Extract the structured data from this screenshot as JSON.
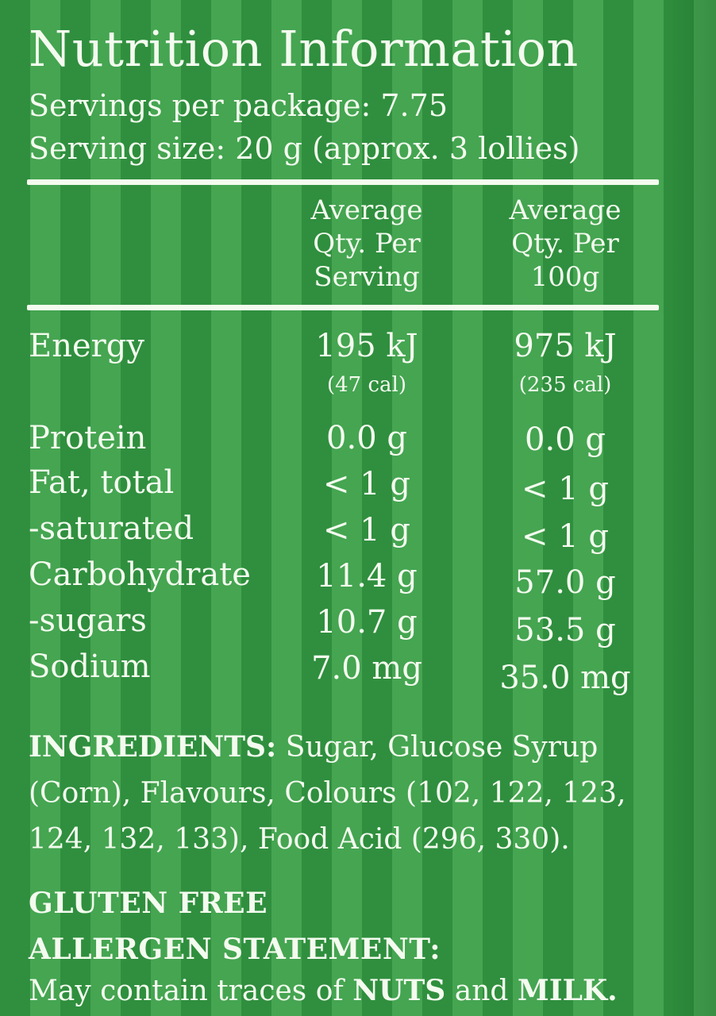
{
  "header": {
    "title": "Nutrition Information",
    "servings_per_package": "Servings per package: 7.75",
    "serving_size": "Serving size: 20 g (approx. 3 lollies)"
  },
  "columns": {
    "per_serving": [
      "Average",
      "Qty. Per",
      "Serving"
    ],
    "per_100g": [
      "Average",
      "Qty. Per",
      "100g"
    ]
  },
  "energy": {
    "label": "Energy",
    "per_serving": "195 kJ",
    "per_serving_cal": "(47 cal)",
    "per_100g": "975 kJ",
    "per_100g_cal": "(235 cal)"
  },
  "nutrients": [
    {
      "label": "Protein",
      "per_serving": "0.0 g",
      "per_100g": "0.0 g"
    },
    {
      "label": "Fat, total",
      "per_serving": "< 1 g",
      "per_100g": "< 1 g"
    },
    {
      "label": "-saturated",
      "per_serving": "< 1 g",
      "per_100g": "< 1 g"
    },
    {
      "label": "Carbohydrate",
      "per_serving": "11.4 g",
      "per_100g": "57.0 g"
    },
    {
      "label": "-sugars",
      "per_serving": "10.7 g",
      "per_100g": "53.5 g"
    },
    {
      "label": "Sodium",
      "per_serving": "7.0 mg",
      "per_100g": "35.0 mg"
    }
  ],
  "ingredients": {
    "heading": "INGREDIENTS:",
    "text": "Sugar, Glucose Syrup (Corn), Flavours, Colours (102, 122, 123, 124, 132, 133), Food Acid (296, 330)."
  },
  "gluten_free": "GLUTEN FREE",
  "allergen": {
    "heading": "ALLERGEN STATEMENT:",
    "text_prefix": "May contain traces of",
    "nuts": "NUTS",
    "and": "and",
    "milk": "MILK."
  },
  "colors": {
    "stripe_dark": "#2f8f3e",
    "stripe_light": "#45a551",
    "text": "#f4fbef"
  }
}
